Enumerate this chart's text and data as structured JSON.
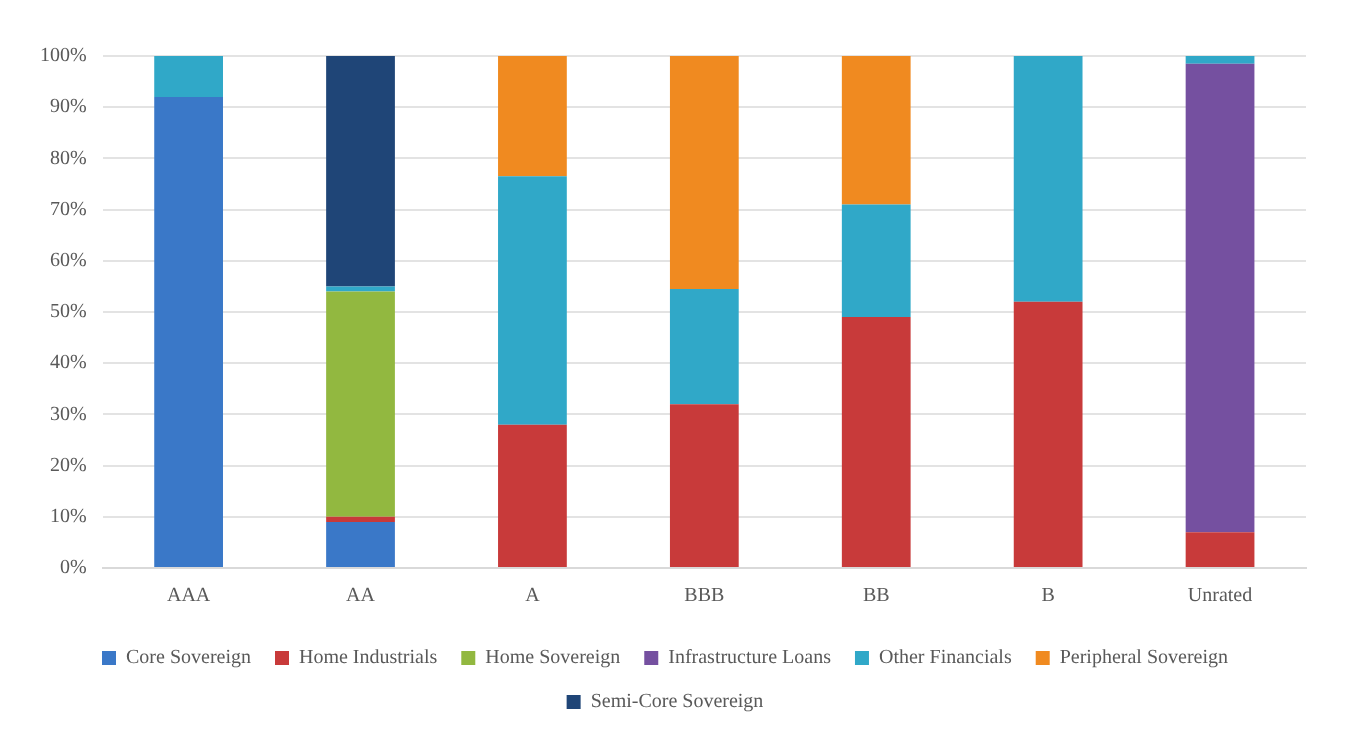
{
  "chart_data": {
    "type": "bar",
    "stacked": true,
    "categories": [
      "AAA",
      "AA",
      "A",
      "BBB",
      "BB",
      "B",
      "Unrated"
    ],
    "series": [
      {
        "name": "Core Sovereign",
        "color": "#3a78c8",
        "values": [
          92,
          9,
          0,
          0,
          0,
          0,
          0
        ]
      },
      {
        "name": "Home Industrials",
        "color": "#c83a3a",
        "values": [
          0,
          1,
          28,
          32,
          49,
          52,
          7
        ]
      },
      {
        "name": "Home Sovereign",
        "color": "#92b840",
        "values": [
          0,
          44,
          0,
          0,
          0,
          0,
          0
        ]
      },
      {
        "name": "Infrastructure Loans",
        "color": "#7550a0",
        "values": [
          0,
          0,
          0,
          0,
          0,
          0,
          91.5
        ]
      },
      {
        "name": "Other Financials",
        "color": "#30a8c8",
        "values": [
          8,
          1,
          48.5,
          22.5,
          22,
          48,
          1.5
        ]
      },
      {
        "name": "Peripheral Sovereign",
        "color": "#f08a20",
        "values": [
          0,
          0,
          23.5,
          45.5,
          29,
          0,
          0
        ]
      },
      {
        "name": "Semi-Core Sovereign",
        "color": "#1f4577",
        "values": [
          0,
          45,
          0,
          0,
          0,
          0,
          0
        ]
      }
    ],
    "ylim": [
      0,
      100
    ],
    "yticks": [
      {
        "value": 0,
        "label": "0%"
      },
      {
        "value": 10,
        "label": "10%"
      },
      {
        "value": 20,
        "label": "20%"
      },
      {
        "value": 30,
        "label": "30%"
      },
      {
        "value": 40,
        "label": "40%"
      },
      {
        "value": 50,
        "label": "50%"
      },
      {
        "value": 60,
        "label": "60%"
      },
      {
        "value": 70,
        "label": "70%"
      },
      {
        "value": 80,
        "label": "80%"
      },
      {
        "value": 90,
        "label": "90%"
      },
      {
        "value": 100,
        "label": "100%"
      }
    ],
    "grid": "y",
    "legend": "bottom"
  }
}
